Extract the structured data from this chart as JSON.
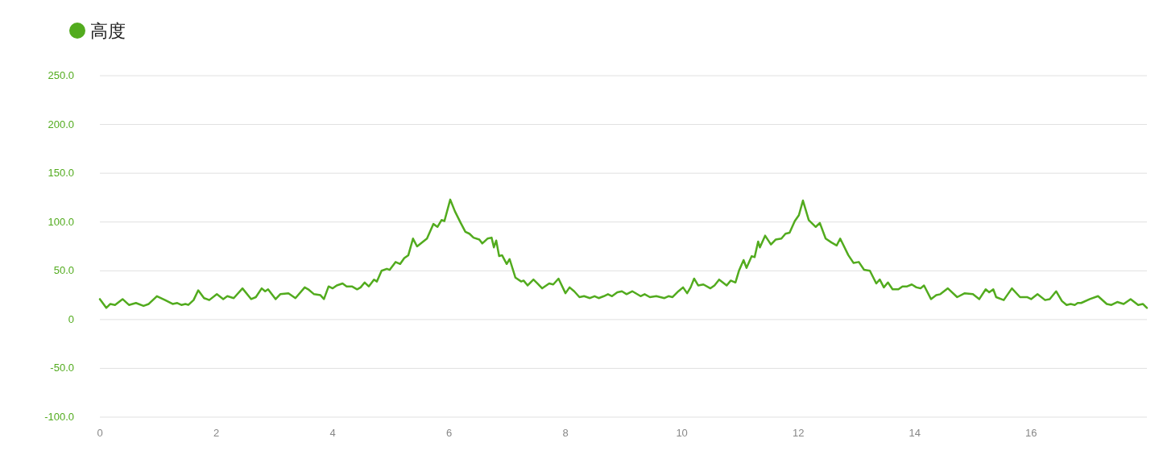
{
  "chart_data": {
    "type": "line",
    "series": [
      {
        "name": "高度",
        "color": "#52ab1e",
        "x": [
          0,
          0.11,
          0.18,
          0.26,
          0.39,
          0.5,
          0.62,
          0.75,
          0.84,
          0.98,
          1.12,
          1.25,
          1.33,
          1.4,
          1.47,
          1.52,
          1.61,
          1.69,
          1.79,
          1.88,
          2.01,
          2.12,
          2.19,
          2.3,
          2.45,
          2.6,
          2.68,
          2.78,
          2.84,
          2.89,
          3.02,
          3.1,
          3.24,
          3.36,
          3.52,
          3.58,
          3.68,
          3.79,
          3.85,
          3.93,
          4.0,
          4.07,
          4.17,
          4.24,
          4.33,
          4.42,
          4.48,
          4.55,
          4.62,
          4.71,
          4.76,
          4.84,
          4.93,
          4.98,
          5.08,
          5.16,
          5.23,
          5.3,
          5.38,
          5.45,
          5.62,
          5.73,
          5.8,
          5.87,
          5.92,
          6.02,
          6.1,
          6.2,
          6.28,
          6.35,
          6.42,
          6.52,
          6.57,
          6.66,
          6.73,
          6.77,
          6.81,
          6.86,
          6.91,
          6.99,
          7.04,
          7.14,
          7.24,
          7.28,
          7.35,
          7.45,
          7.52,
          7.6,
          7.72,
          7.79,
          7.88,
          8.0,
          8.07,
          8.15,
          8.24,
          8.32,
          8.42,
          8.5,
          8.57,
          8.66,
          8.73,
          8.8,
          8.89,
          8.97,
          9.05,
          9.15,
          9.29,
          9.36,
          9.45,
          9.56,
          9.7,
          9.77,
          9.84,
          9.94,
          10.02,
          10.09,
          10.15,
          10.21,
          10.28,
          10.37,
          10.49,
          10.56,
          10.64,
          10.77,
          10.84,
          10.92,
          10.98,
          11.06,
          11.11,
          11.2,
          11.25,
          11.31,
          11.34,
          11.43,
          11.53,
          11.61,
          11.71,
          11.78,
          11.85,
          11.94,
          12.01,
          12.08,
          12.18,
          12.3,
          12.37,
          12.47,
          12.57,
          12.66,
          12.72,
          12.86,
          12.95,
          13.04,
          13.13,
          13.23,
          13.34,
          13.4,
          13.47,
          13.54,
          13.62,
          13.72,
          13.79,
          13.87,
          13.95,
          14.03,
          14.1,
          14.16,
          14.28,
          14.37,
          14.44,
          14.57,
          14.73,
          14.86,
          15.0,
          15.11,
          15.22,
          15.28,
          15.35,
          15.4,
          15.53,
          15.67,
          15.81,
          15.93,
          16.0,
          16.11,
          16.24,
          16.32,
          16.43,
          16.53,
          16.61,
          16.68,
          16.75,
          16.8,
          16.86,
          17.01,
          17.15,
          17.3,
          17.38,
          17.48,
          17.59,
          17.71,
          17.84,
          17.92,
          17.99
        ],
        "values": [
          21,
          12,
          16,
          15,
          21,
          15,
          17,
          14,
          16,
          24,
          20,
          16,
          17,
          15,
          16,
          15,
          20,
          30,
          22,
          20,
          26,
          21,
          24,
          22,
          32,
          21,
          23,
          32,
          29,
          31,
          21,
          26,
          27,
          22,
          33,
          31,
          26,
          25,
          21,
          34,
          32,
          35,
          37,
          34,
          34,
          31,
          33,
          38,
          34,
          41,
          39,
          50,
          52,
          51,
          59,
          57,
          63,
          66,
          83,
          75,
          83,
          98,
          95,
          102,
          101,
          123,
          111,
          99,
          90,
          88,
          84,
          82,
          78,
          83,
          84,
          74,
          81,
          65,
          66,
          57,
          62,
          43,
          39,
          40,
          35,
          41,
          37,
          32,
          37,
          36,
          42,
          27,
          33,
          29,
          23,
          24,
          22,
          24,
          22,
          24,
          26,
          24,
          28,
          29,
          26,
          29,
          24,
          26,
          23,
          24,
          22,
          24,
          23,
          29,
          33,
          27,
          33,
          42,
          35,
          36,
          32,
          35,
          41,
          35,
          40,
          38,
          50,
          61,
          53,
          65,
          64,
          80,
          74,
          86,
          77,
          82,
          83,
          88,
          89,
          101,
          107,
          122,
          102,
          95,
          99,
          83,
          79,
          76,
          83,
          66,
          58,
          59,
          51,
          50,
          37,
          41,
          33,
          38,
          31,
          31,
          34,
          34,
          36,
          33,
          32,
          35,
          21,
          25,
          26,
          32,
          23,
          27,
          26,
          21,
          31,
          28,
          31,
          23,
          20,
          32,
          23,
          23,
          21,
          26,
          20,
          21,
          29,
          19,
          15,
          16,
          15,
          17,
          17,
          21,
          24,
          16,
          15,
          18,
          16,
          21,
          15,
          16,
          12
        ]
      }
    ],
    "xlim": [
      0,
      17.99
    ],
    "ylim": [
      -100,
      250
    ],
    "xticks": [
      0,
      2,
      4,
      6,
      8,
      10,
      12,
      14,
      16
    ],
    "yticks": [
      {
        "value": -100,
        "label": "-100.0"
      },
      {
        "value": -50,
        "label": "-50.0"
      },
      0,
      {
        "value": 50,
        "label": "50.0"
      },
      {
        "value": 100,
        "label": "100.0"
      },
      {
        "value": 150,
        "label": "150.0"
      },
      {
        "value": 200,
        "label": "200.0"
      },
      {
        "value": 250,
        "label": "250.0"
      }
    ],
    "grid": "y",
    "legend": "top left"
  }
}
